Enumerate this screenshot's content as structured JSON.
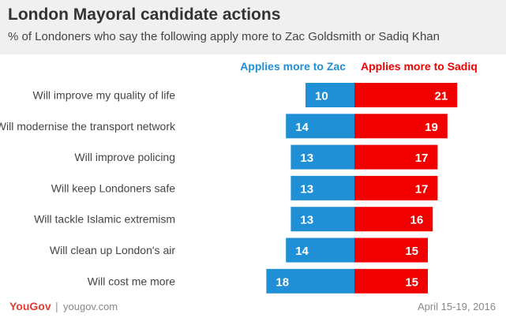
{
  "header": {
    "title": "London Mayoral candidate actions",
    "subtitle": "% of Londoners who say the following apply more to Zac Goldsmith or Sadiq Khan"
  },
  "footer": {
    "logo": "YouGov",
    "site": "yougov.com",
    "date": "April 15-19, 2016"
  },
  "colors": {
    "zac": "#1f8fd6",
    "sadiq": "#f20000",
    "label": "#444444",
    "bar_text": "#ffffff"
  },
  "chart_data": {
    "type": "bar",
    "orientation": "horizontal-diverging",
    "categories": [
      "Will improve my quality of life",
      "Will modernise the transport network",
      "Will improve policing",
      "Will keep Londoners safe",
      "Will tackle Islamic extremism",
      "Will clean up London's air",
      "Will cost me more"
    ],
    "series": [
      {
        "name": "Applies more to Zac",
        "values": [
          10,
          14,
          13,
          13,
          13,
          14,
          18
        ]
      },
      {
        "name": "Applies more to Sadiq",
        "values": [
          21,
          19,
          17,
          17,
          16,
          15,
          15
        ]
      }
    ],
    "legend_position": "top",
    "grid": false
  }
}
